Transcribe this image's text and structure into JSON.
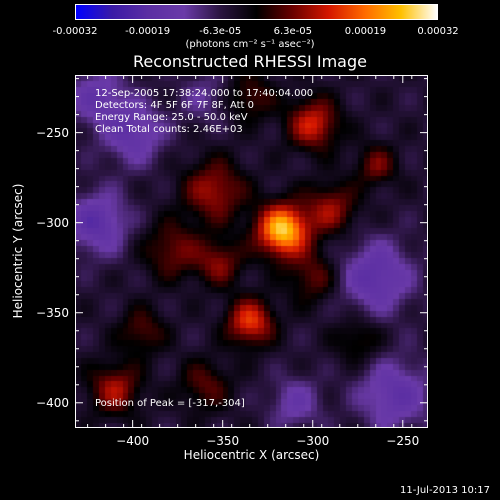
{
  "colorbar": {
    "tick_labels": [
      "-0.00032",
      "-0.00019",
      "-6.3e-05",
      "6.3e-05",
      "0.00019",
      "0.00032"
    ],
    "units_label": "(photons cm⁻² s⁻¹ asec⁻²)",
    "colors": [
      "#0000ff",
      "#3a1aa6",
      "#5b2ea3",
      "#6a3aa8",
      "#2a1440",
      "#000000",
      "#6a0000",
      "#d41600",
      "#ff6a00",
      "#ffc000",
      "#ffffff"
    ]
  },
  "chart_data": {
    "type": "heatmap",
    "title": "Reconstructed RHESSI Image",
    "xlabel": "Heliocentric X (arcsec)",
    "ylabel": "Heliocentric Y (arcsec)",
    "xlim": [
      -432,
      -236
    ],
    "ylim": [
      -414,
      -218
    ],
    "xticks": [
      -400,
      -350,
      -300,
      -250
    ],
    "yticks": [
      -400,
      -350,
      -300,
      -250
    ],
    "xtick_labels": [
      "−400",
      "−350",
      "−300",
      "−250"
    ],
    "ytick_labels": [
      "−400",
      "−350",
      "−300",
      "−250"
    ],
    "zlim": [
      -0.00032,
      0.00032
    ],
    "peak": {
      "x": -317,
      "y": -304
    },
    "overlay_lines": [
      "12-Sep-2005 17:38:24.000 to 17:40:04.000",
      "Detectors: 4F 5F 6F 7F 8F, Att 0",
      "Energy Range: 25.0 - 50.0 keV",
      "Clean    Total counts: 2.46E+03"
    ],
    "peak_label": "Position of Peak = [-317,-304]",
    "sources": [
      {
        "x": -317,
        "y": -304,
        "amp": 1.0,
        "r": 10
      },
      {
        "x": -335,
        "y": -355,
        "amp": 0.62,
        "r": 9
      },
      {
        "x": -300,
        "y": -245,
        "amp": 0.55,
        "r": 10
      },
      {
        "x": -355,
        "y": -282,
        "amp": 0.45,
        "r": 12
      },
      {
        "x": -378,
        "y": -315,
        "amp": 0.35,
        "r": 11
      },
      {
        "x": -352,
        "y": -322,
        "amp": 0.38,
        "r": 9
      },
      {
        "x": -290,
        "y": -292,
        "amp": 0.42,
        "r": 10
      },
      {
        "x": -265,
        "y": -268,
        "amp": 0.35,
        "r": 8
      },
      {
        "x": -410,
        "y": -392,
        "amp": 0.45,
        "r": 10
      },
      {
        "x": -395,
        "y": -360,
        "amp": 0.3,
        "r": 9
      },
      {
        "x": -300,
        "y": -330,
        "amp": 0.32,
        "r": 10
      },
      {
        "x": -400,
        "y": -250,
        "amp": -0.4,
        "r": 12
      },
      {
        "x": -420,
        "y": -300,
        "amp": -0.45,
        "r": 12
      },
      {
        "x": -265,
        "y": -330,
        "amp": -0.45,
        "r": 14
      },
      {
        "x": -255,
        "y": -395,
        "amp": -0.4,
        "r": 14
      },
      {
        "x": -310,
        "y": -400,
        "amp": -0.3,
        "r": 10
      },
      {
        "x": -360,
        "y": -390,
        "amp": 0.3,
        "r": 10
      },
      {
        "x": -420,
        "y": -230,
        "amp": -0.35,
        "r": 11
      },
      {
        "x": -360,
        "y": -230,
        "amp": -0.2,
        "r": 10
      },
      {
        "x": -275,
        "y": -365,
        "amp": 0.25,
        "r": 9
      },
      {
        "x": -335,
        "y": -230,
        "amp": 0.3,
        "r": 9
      }
    ]
  },
  "footer": {
    "timestamp": "11-Jul-2013 10:17"
  }
}
